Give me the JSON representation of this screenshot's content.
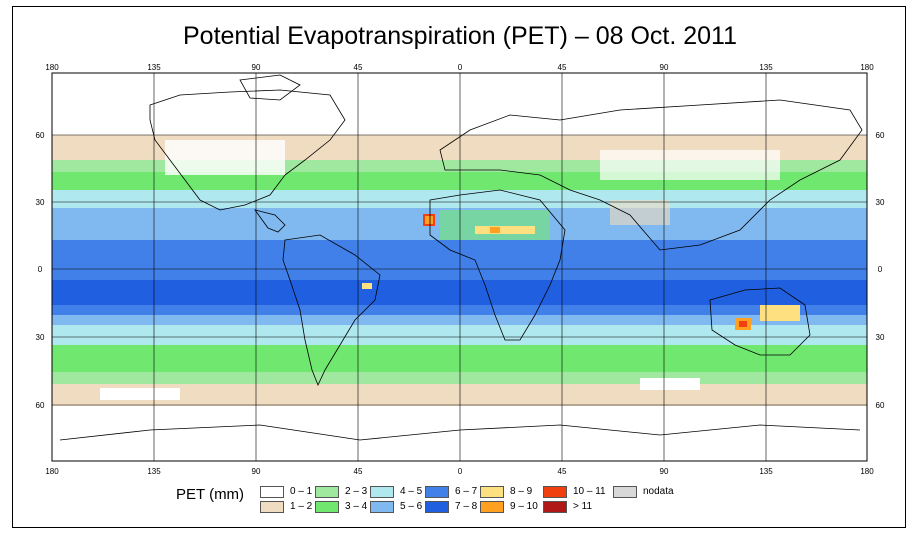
{
  "title": "Potential Evapotranspiration (PET) – 08 Oct. 2011",
  "axes": {
    "lon_ticks": [
      "180",
      "135",
      "90",
      "45",
      "0",
      "45",
      "90",
      "135",
      "180"
    ],
    "lat_ticks": [
      "60",
      "30",
      "0",
      "30",
      "60"
    ]
  },
  "legend": {
    "label": "PET (mm)",
    "items": [
      {
        "label": "0 – 1",
        "color": "#ffffff"
      },
      {
        "label": "1 – 2",
        "color": "#f0dcc0"
      },
      {
        "label": "2 – 3",
        "color": "#a0e8a0"
      },
      {
        "label": "3 – 4",
        "color": "#70e870"
      },
      {
        "label": "4 – 5",
        "color": "#b0e8f0"
      },
      {
        "label": "5 – 6",
        "color": "#80b8f0"
      },
      {
        "label": "6 – 7",
        "color": "#4080e8"
      },
      {
        "label": "7 – 8",
        "color": "#2060e0"
      },
      {
        "label": "8 – 9",
        "color": "#ffe080"
      },
      {
        "label": "9 – 10",
        "color": "#ffa020"
      },
      {
        "label": "10 – 11",
        "color": "#f04010"
      },
      {
        "label": "> 11",
        "color": "#b01818"
      },
      {
        "label": "nodata",
        "color": "#d8d8d8"
      }
    ]
  }
}
